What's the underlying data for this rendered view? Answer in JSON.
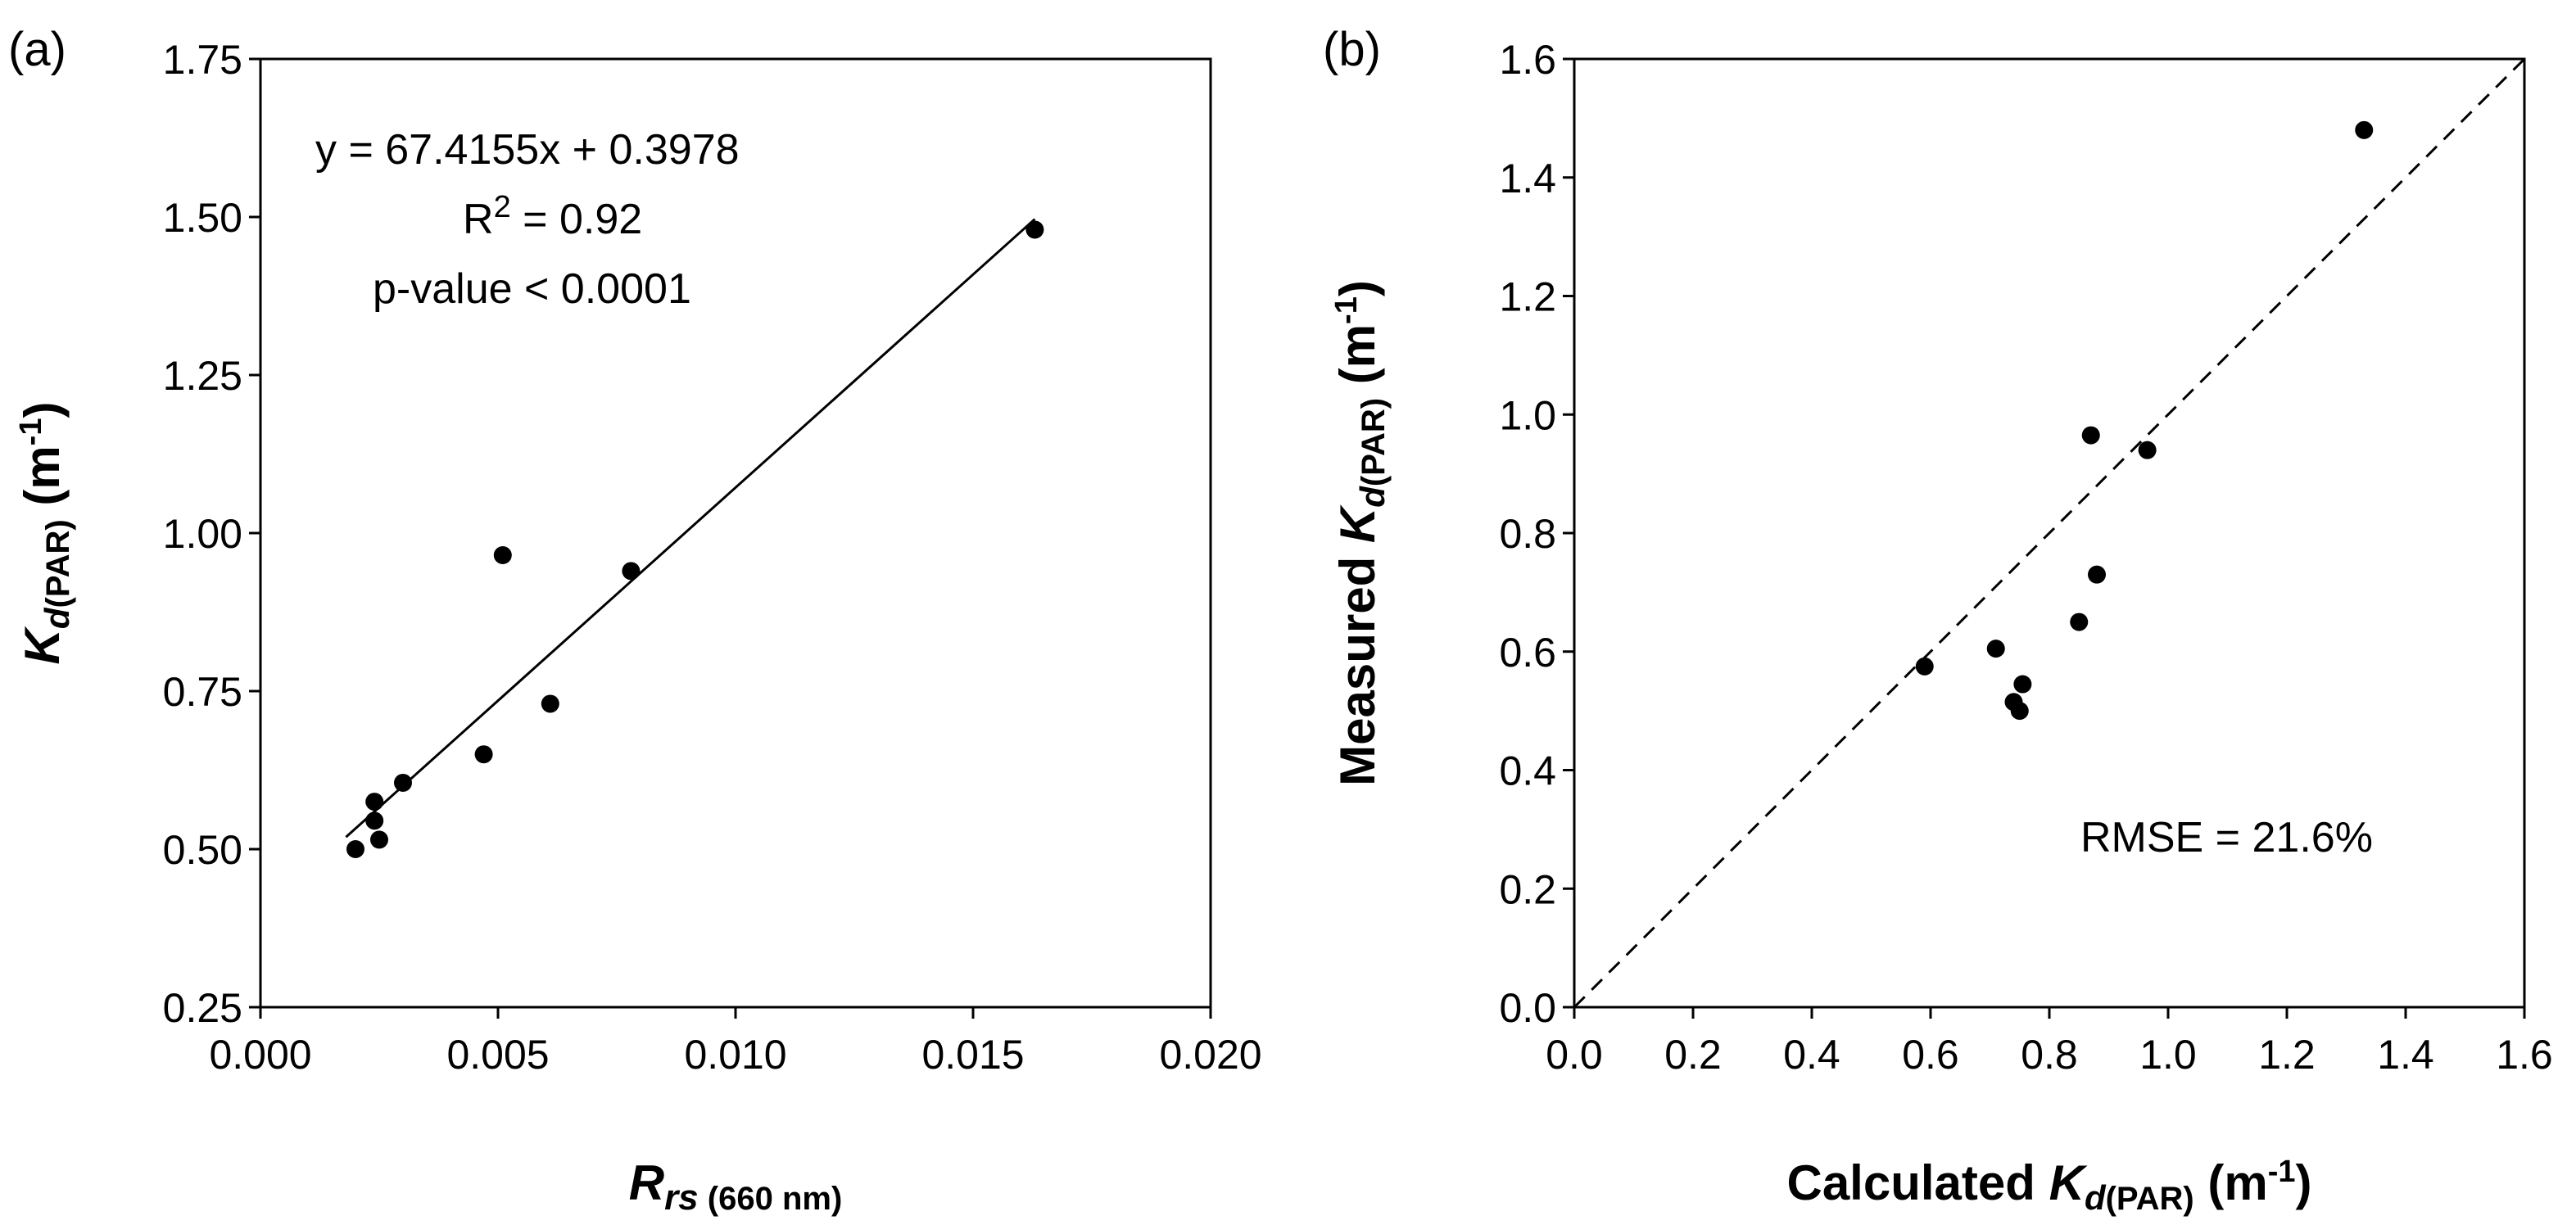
{
  "chart_data": [
    {
      "panel": "(a)",
      "type": "scatter",
      "xlabel": {
        "main": "R",
        "sub_italic": "rs",
        "sub_rest": " (660 nm)"
      },
      "ylabel": {
        "main": "K",
        "sub_italic": "d",
        "sub_rest": "(PAR)",
        "unit": " (m",
        "unit_exp": "-1",
        "unit_close": ")"
      },
      "xlim": [
        0.0,
        0.02
      ],
      "ylim": [
        0.25,
        1.75
      ],
      "xticks": [
        0.0,
        0.005,
        0.01,
        0.015,
        0.02
      ],
      "xtick_labels": [
        "0.000",
        "0.005",
        "0.010",
        "0.015",
        "0.020"
      ],
      "yticks": [
        0.25,
        0.5,
        0.75,
        1.0,
        1.25,
        1.5,
        1.75
      ],
      "ytick_labels": [
        "0.25",
        "0.50",
        "0.75",
        "1.00",
        "1.25",
        "1.50",
        "1.75"
      ],
      "points": [
        {
          "x": 0.002,
          "y": 0.5
        },
        {
          "x": 0.0024,
          "y": 0.545
        },
        {
          "x": 0.0025,
          "y": 0.515
        },
        {
          "x": 0.0024,
          "y": 0.575
        },
        {
          "x": 0.003,
          "y": 0.605
        },
        {
          "x": 0.0047,
          "y": 0.65
        },
        {
          "x": 0.0051,
          "y": 0.965
        },
        {
          "x": 0.0061,
          "y": 0.73
        },
        {
          "x": 0.0078,
          "y": 0.94
        },
        {
          "x": 0.0163,
          "y": 1.48
        }
      ],
      "fit_line": {
        "slope": 67.4155,
        "intercept": 0.3978,
        "x_range": [
          0.0018,
          0.0163
        ]
      },
      "annotations": {
        "equation": "y = 67.4155x + 0.3978",
        "r2_prefix": "R",
        "r2_exp": "2",
        "r2_value": " = 0.92",
        "pvalue": "p-value < 0.0001"
      }
    },
    {
      "panel": "(b)",
      "type": "scatter",
      "xlabel": {
        "prefix": "Calculated ",
        "main": "K",
        "sub_italic": "d",
        "sub_rest": "(PAR)",
        "unit": " (m",
        "unit_exp": "-1",
        "unit_close": ")"
      },
      "ylabel": {
        "prefix": "Measured ",
        "main": "K",
        "sub_italic": "d",
        "sub_rest": "(PAR)",
        "unit": " (m",
        "unit_exp": "-1",
        "unit_close": ")"
      },
      "xlim": [
        0.0,
        1.6
      ],
      "ylim": [
        0.0,
        1.6
      ],
      "xticks": [
        0.0,
        0.2,
        0.4,
        0.6,
        0.8,
        1.0,
        1.2,
        1.4,
        1.6
      ],
      "xtick_labels": [
        "0.0",
        "0.2",
        "0.4",
        "0.6",
        "0.8",
        "1.0",
        "1.2",
        "1.4",
        "1.6"
      ],
      "yticks": [
        0.0,
        0.2,
        0.4,
        0.6,
        0.8,
        1.0,
        1.2,
        1.4,
        1.6
      ],
      "ytick_labels": [
        "0.0",
        "0.2",
        "0.4",
        "0.6",
        "0.8",
        "1.0",
        "1.2",
        "1.4",
        "1.6"
      ],
      "points": [
        {
          "x": 0.59,
          "y": 0.575
        },
        {
          "x": 0.71,
          "y": 0.605
        },
        {
          "x": 0.74,
          "y": 0.515
        },
        {
          "x": 0.75,
          "y": 0.5
        },
        {
          "x": 0.755,
          "y": 0.545
        },
        {
          "x": 0.85,
          "y": 0.65
        },
        {
          "x": 0.87,
          "y": 0.965
        },
        {
          "x": 0.88,
          "y": 0.73
        },
        {
          "x": 0.965,
          "y": 0.94
        },
        {
          "x": 1.33,
          "y": 1.48
        }
      ],
      "reference_line": "1:1 dashed",
      "annotations": {
        "rmse": "RMSE = 21.6%"
      }
    }
  ]
}
